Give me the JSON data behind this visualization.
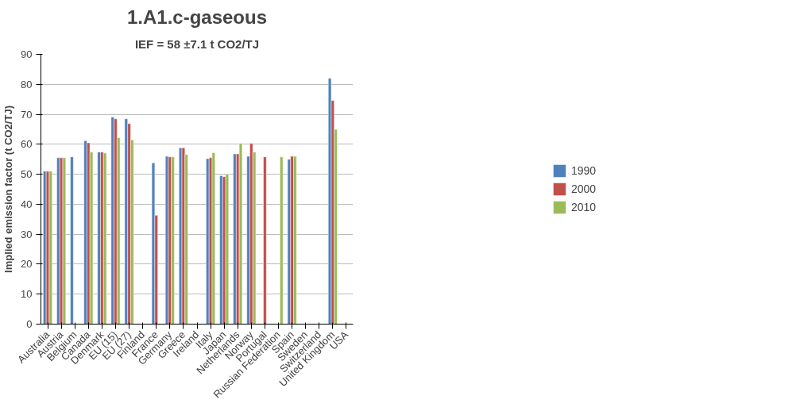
{
  "chart_data": {
    "type": "bar",
    "title": "1.A1.c-gaseous",
    "subtitle": "IEF = 58 ±7.1 t CO2/TJ",
    "ylabel": "Implied emission factor (t CO2/TJ)",
    "categories": [
      "Australia",
      "Austria",
      "Belgium",
      "Canada",
      "Denmark",
      "EU (15)",
      "EU (27)",
      "Finland",
      "France",
      "Germany",
      "Greece",
      "Ireland",
      "Italy",
      "Japan",
      "Netherlands",
      "Norway",
      "Portugal",
      "Russian Federation",
      "Spain",
      "Sweden",
      "Switzerland",
      "United Kingdom",
      "USA"
    ],
    "series": [
      {
        "name": "1990",
        "color": "#4f81bd",
        "values": [
          51,
          55.5,
          55.8,
          61.2,
          57.4,
          69.1,
          68.5,
          null,
          53.8,
          56,
          58.8,
          null,
          55.2,
          49.5,
          56.8,
          56,
          null,
          null,
          55,
          null,
          null,
          82,
          null
        ]
      },
      {
        "name": "2000",
        "color": "#c0504d",
        "values": [
          51,
          55.5,
          null,
          60.5,
          57.4,
          68.5,
          66.9,
          null,
          36.3,
          55.8,
          58.8,
          null,
          55.5,
          49.2,
          56.8,
          60.3,
          55.8,
          null,
          56,
          null,
          null,
          74.6,
          null
        ]
      },
      {
        "name": "2010",
        "color": "#9bbb59",
        "values": [
          51,
          55.5,
          null,
          57.4,
          57.1,
          62.2,
          61.5,
          null,
          null,
          55.8,
          56.6,
          null,
          57.2,
          50,
          60.3,
          57.4,
          null,
          55.8,
          56,
          null,
          null,
          65,
          null
        ]
      }
    ],
    "ylim": [
      0,
      90
    ],
    "yticks": [
      0,
      10,
      20,
      30,
      40,
      50,
      60,
      70,
      80,
      90
    ],
    "grid": "y",
    "legend": "right"
  }
}
